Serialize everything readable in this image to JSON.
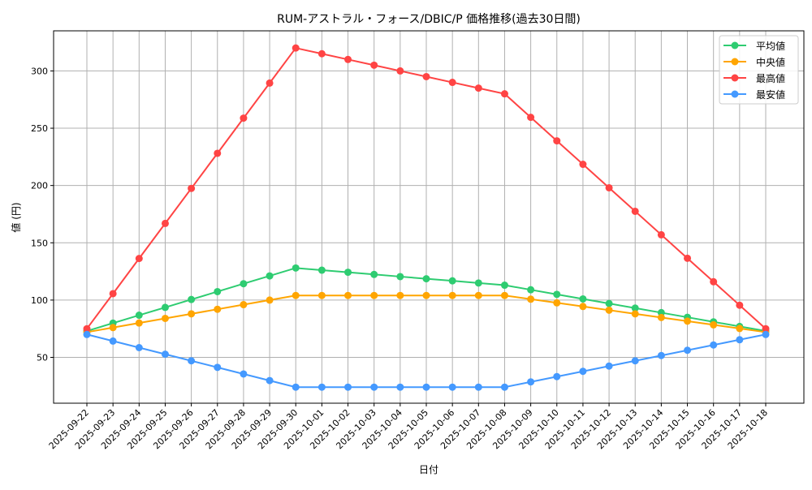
{
  "chart_data": {
    "type": "line",
    "title": "RUM-アストラル・フォース/DBIC/P 価格推移(過去30日間)",
    "xlabel": "日付",
    "ylabel": "値 (円)",
    "ylim": [
      10,
      335
    ],
    "yticks": [
      50,
      100,
      150,
      200,
      250,
      300
    ],
    "grid": true,
    "legend_position": "top-right",
    "categories": [
      "2025-09-22",
      "2025-09-23",
      "2025-09-24",
      "2025-09-25",
      "2025-09-26",
      "2025-09-27",
      "2025-09-28",
      "2025-09-29",
      "2025-09-30",
      "2025-10-01",
      "2025-10-02",
      "2025-10-03",
      "2025-10-04",
      "2025-10-05",
      "2025-10-06",
      "2025-10-07",
      "2025-10-08",
      "2025-10-09",
      "2025-10-10",
      "2025-10-11",
      "2025-10-12",
      "2025-10-13",
      "2025-10-14",
      "2025-10-15",
      "2025-10-16",
      "2025-10-17",
      "2025-10-18"
    ],
    "series": [
      {
        "name": "平均値",
        "color": "#2ecc71",
        "values": [
          73,
          79.9,
          86.8,
          93.6,
          100.5,
          107.4,
          114.3,
          121.1,
          128,
          126.1,
          124.3,
          122.4,
          120.5,
          118.6,
          116.8,
          114.9,
          113,
          109,
          105,
          101,
          97,
          93,
          89,
          85,
          81,
          77,
          73
        ]
      },
      {
        "name": "中央値",
        "color": "#ffa500",
        "values": [
          72,
          76,
          80,
          84,
          88,
          92,
          96,
          100,
          104,
          104,
          104,
          104,
          104,
          104,
          104,
          104,
          104,
          100.8,
          97.6,
          94.4,
          91.2,
          88,
          84.8,
          81.6,
          78.4,
          75.2,
          72
        ]
      },
      {
        "name": "最高値",
        "color": "#ff4444",
        "values": [
          75,
          105.6,
          136.3,
          166.9,
          197.5,
          228.1,
          258.8,
          289.4,
          320,
          315,
          310,
          305,
          300,
          295,
          290,
          285,
          280,
          259.5,
          239,
          218.5,
          198,
          177.5,
          157,
          136.5,
          116,
          95.5,
          75
        ]
      },
      {
        "name": "最安値",
        "color": "#4499ff",
        "values": [
          70,
          64.25,
          58.5,
          52.75,
          47,
          41.25,
          35.5,
          29.75,
          24,
          24,
          24,
          24,
          24,
          24,
          24,
          24,
          24,
          28.6,
          33.2,
          37.8,
          42.4,
          47,
          51.6,
          56.2,
          60.8,
          65.4,
          70
        ]
      }
    ]
  }
}
